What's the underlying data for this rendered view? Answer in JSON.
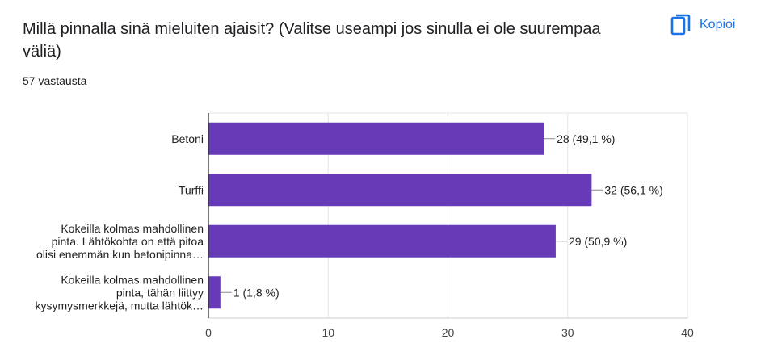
{
  "header": {
    "title_line1": "Millä pinnalla sinä mieluiten ajaisit? (Valitse useampi jos sinulla ei ole suurempaa",
    "title_line2": "väliä)",
    "response_count": "57 vastausta",
    "copy_label": "Kopioi",
    "copy_icon": "copy-icon",
    "accent_color": "#1a73e8"
  },
  "chart_data": {
    "type": "bar",
    "orientation": "horizontal",
    "bar_color": "#673ab7",
    "categories": [
      [
        "Betoni"
      ],
      [
        "Turffi"
      ],
      [
        "Kokeilla kolmas mahdollinen",
        "pinta. Lähtökohta on että pitoa",
        "olisi enemmän kun betonipinna…"
      ],
      [
        "Kokeilla kolmas mahdollinen",
        "pinta, tähän liittyy",
        "kysymysmerkkejä, mutta lähtök…"
      ]
    ],
    "values": [
      28,
      32,
      29,
      1
    ],
    "value_labels": [
      "28 (49,1 %)",
      "32 (56,1 %)",
      "29 (50,9 %)",
      "1 (1,8 %)"
    ],
    "xlim": [
      0,
      40
    ],
    "xticks": [
      0,
      10,
      20,
      30,
      40
    ],
    "grid": true
  }
}
